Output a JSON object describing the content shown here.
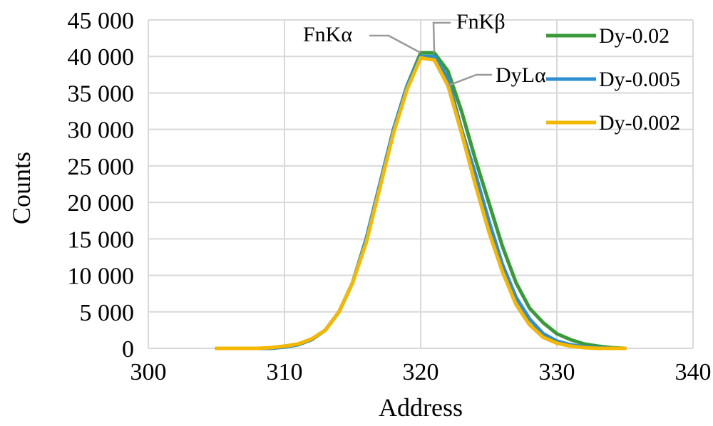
{
  "chart_data": {
    "type": "line",
    "xlabel": "Address",
    "ylabel": "Counts",
    "xlim": [
      300,
      340
    ],
    "ylim": [
      0,
      45000
    ],
    "x_ticks": [
      "300",
      "310",
      "320",
      "330",
      "340"
    ],
    "y_ticks": [
      "0",
      "5 000",
      "10 000",
      "15 000",
      "20 000",
      "25 000",
      "30 000",
      "35 000",
      "40 000",
      "45 000"
    ],
    "grid": "on",
    "legend_position": "top-right",
    "x": [
      305,
      306,
      307,
      308,
      309,
      310,
      311,
      312,
      313,
      314,
      315,
      316,
      317,
      318,
      319,
      320,
      321,
      322,
      323,
      324,
      325,
      326,
      327,
      328,
      329,
      330,
      331,
      332,
      333,
      334,
      335
    ],
    "series": [
      {
        "name": "Dy-0.02",
        "color": "#3a9a3a",
        "values": [
          0,
          0,
          0,
          0,
          0,
          200,
          500,
          1200,
          2500,
          5000,
          9000,
          15000,
          22500,
          30000,
          36000,
          40500,
          40500,
          38000,
          32500,
          26000,
          20000,
          14000,
          9000,
          5500,
          3500,
          2000,
          1200,
          600,
          300,
          100,
          0
        ]
      },
      {
        "name": "Dy-0.005",
        "color": "#2f8fd0",
        "values": [
          0,
          0,
          0,
          0,
          0,
          200,
          500,
          1200,
          2500,
          5000,
          9000,
          15000,
          22500,
          30000,
          36000,
          40000,
          40000,
          37000,
          30000,
          24000,
          17500,
          11500,
          7000,
          4000,
          2000,
          1000,
          500,
          200,
          100,
          0,
          0
        ]
      },
      {
        "name": "Dy-0.002",
        "color": "#f5b800",
        "values": [
          0,
          0,
          0,
          0,
          100,
          300,
          600,
          1300,
          2500,
          5000,
          9000,
          14500,
          22000,
          29500,
          35500,
          39800,
          39500,
          36000,
          29500,
          22500,
          16000,
          10500,
          6000,
          3200,
          1500,
          700,
          300,
          100,
          0,
          0,
          0
        ]
      }
    ],
    "annotations": [
      {
        "text": "FnKα",
        "x": 320,
        "y": 40500
      },
      {
        "text": "FnKβ",
        "x": 321,
        "y": 40500
      },
      {
        "text": "DyLα",
        "x": 322,
        "y": 36000
      }
    ]
  }
}
